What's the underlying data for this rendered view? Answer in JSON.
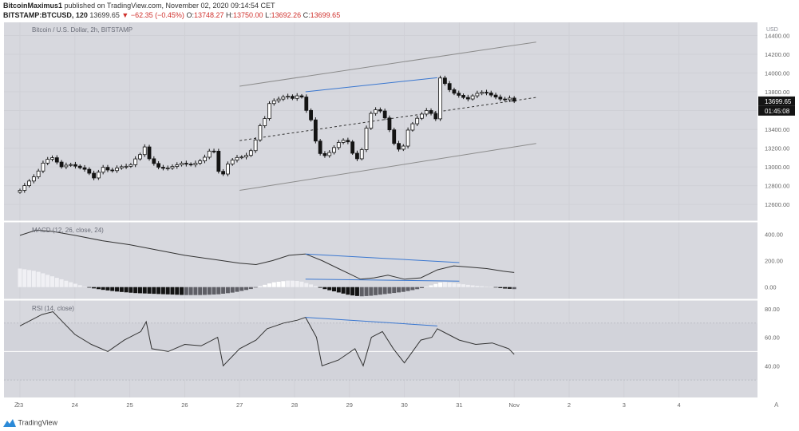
{
  "header": {
    "author": "BitcoinMaximus1",
    "published": "published on TradingView.com, November 02, 2020 09:14:54 CET",
    "symbol": "BITSTAMP:BTCUSD, 120",
    "last": "13699.65",
    "change_arrow": "▼",
    "change": "−62.35 (−0.45%)",
    "o_label": "O:",
    "o_value": "13748.27",
    "h_label": "H:",
    "h_value": "13750.00",
    "l_label": "L:",
    "l_value": "13692.26",
    "c_label": "C:",
    "c_value": "13699.65"
  },
  "main_pane": {
    "legend": "Bitcoin / U.S. Dollar, 2h, BITSTAMP",
    "currency": "USD",
    "price_badge": "13699.65",
    "timer_badge": "01:45:08"
  },
  "macd_pane": {
    "legend": "MACD (12, 26, close, 24)"
  },
  "rsi_pane": {
    "legend": "RSI (14, close)"
  },
  "footer": {
    "brand": "TradingView"
  },
  "colors": {
    "background": "#ffffff",
    "pane": "#d7d8de",
    "candle_up": "#ffffff",
    "candle_down": "#141414",
    "trendline": "#3a77d0",
    "channel": "#8c8c8c",
    "down_text": "#d0312d"
  },
  "chart_data": [
    {
      "type": "candlestick",
      "title": "Bitcoin / U.S. Dollar, 2h, BITSTAMP",
      "ylabel": "USD",
      "ylim": [
        12440,
        14540
      ],
      "x_ticks": [
        "23",
        "24",
        "25",
        "26",
        "27",
        "28",
        "29",
        "30",
        "31",
        "Nov",
        "2",
        "3",
        "4"
      ],
      "y_ticks": [
        12600,
        12800,
        13000,
        13200,
        13400,
        13600,
        13800,
        14000,
        14200,
        14400
      ],
      "last_price": 13699.65,
      "close_path": [
        [
          0,
          12750
        ],
        [
          0.15,
          12840
        ],
        [
          0.3,
          12920
        ],
        [
          0.45,
          13070
        ],
        [
          0.6,
          13100
        ],
        [
          0.75,
          13000
        ],
        [
          0.9,
          13030
        ],
        [
          1.05,
          13000
        ],
        [
          1.2,
          12970
        ],
        [
          1.35,
          12880
        ],
        [
          1.5,
          13000
        ],
        [
          1.65,
          12950
        ],
        [
          1.8,
          13000
        ],
        [
          2.0,
          13010
        ],
        [
          2.15,
          13120
        ],
        [
          2.25,
          13150
        ],
        [
          2.3,
          13300
        ],
        [
          2.35,
          13090
        ],
        [
          2.5,
          13000
        ],
        [
          2.65,
          12980
        ],
        [
          2.8,
          13010
        ],
        [
          2.95,
          13040
        ],
        [
          3.1,
          13020
        ],
        [
          3.25,
          13050
        ],
        [
          3.4,
          13120
        ],
        [
          3.5,
          13220
        ],
        [
          3.55,
          13140
        ],
        [
          3.6,
          13000
        ],
        [
          3.65,
          12860
        ],
        [
          3.8,
          13050
        ],
        [
          3.95,
          13100
        ],
        [
          4.1,
          13110
        ],
        [
          4.25,
          13200
        ],
        [
          4.35,
          13420
        ],
        [
          4.45,
          13500
        ],
        [
          4.55,
          13690
        ],
        [
          4.7,
          13720
        ],
        [
          4.85,
          13760
        ],
        [
          5.0,
          13720
        ],
        [
          5.1,
          13800
        ],
        [
          5.2,
          13620
        ],
        [
          5.3,
          13500
        ],
        [
          5.4,
          13230
        ],
        [
          5.5,
          13100
        ],
        [
          5.65,
          13160
        ],
        [
          5.8,
          13260
        ],
        [
          5.95,
          13300
        ],
        [
          6.05,
          13150
        ],
        [
          6.15,
          13080
        ],
        [
          6.25,
          13220
        ],
        [
          6.35,
          13550
        ],
        [
          6.5,
          13620
        ],
        [
          6.6,
          13580
        ],
        [
          6.7,
          13450
        ],
        [
          6.8,
          13260
        ],
        [
          6.95,
          13150
        ],
        [
          7.05,
          13380
        ],
        [
          7.2,
          13500
        ],
        [
          7.35,
          13580
        ],
        [
          7.45,
          13620
        ],
        [
          7.55,
          13480
        ],
        [
          7.6,
          13560
        ],
        [
          7.65,
          13950
        ],
        [
          7.75,
          13880
        ],
        [
          7.85,
          13800
        ],
        [
          8.0,
          13760
        ],
        [
          8.15,
          13720
        ],
        [
          8.3,
          13780
        ],
        [
          8.45,
          13800
        ],
        [
          8.6,
          13760
        ],
        [
          8.8,
          13710
        ],
        [
          8.95,
          13740
        ],
        [
          9.0,
          13699.65
        ]
      ],
      "annotations": {
        "trendline": [
          [
            5.2,
            13800
          ],
          [
            7.6,
            13950
          ]
        ],
        "channel_upper": [
          [
            4.0,
            13860
          ],
          [
            9.4,
            14330
          ]
        ],
        "channel_mid": [
          [
            4.0,
            13280
          ],
          [
            9.4,
            13740
          ]
        ],
        "channel_lower": [
          [
            4.0,
            12750
          ],
          [
            9.4,
            13250
          ]
        ]
      }
    },
    {
      "type": "line",
      "title": "MACD (12, 26, close, 24)",
      "ylim": [
        -80,
        480
      ],
      "y_ticks": [
        0,
        200,
        400
      ],
      "macd": [
        [
          0,
          390
        ],
        [
          0.3,
          430
        ],
        [
          0.6,
          420
        ],
        [
          1.0,
          390
        ],
        [
          1.5,
          350
        ],
        [
          2.0,
          320
        ],
        [
          2.5,
          280
        ],
        [
          3.0,
          240
        ],
        [
          3.5,
          210
        ],
        [
          4.0,
          180
        ],
        [
          4.3,
          170
        ],
        [
          4.6,
          200
        ],
        [
          4.9,
          240
        ],
        [
          5.2,
          250
        ],
        [
          5.5,
          200
        ],
        [
          5.8,
          140
        ],
        [
          6.0,
          100
        ],
        [
          6.2,
          60
        ],
        [
          6.45,
          70
        ],
        [
          6.7,
          90
        ],
        [
          7.0,
          60
        ],
        [
          7.3,
          70
        ],
        [
          7.6,
          130
        ],
        [
          7.9,
          160
        ],
        [
          8.2,
          150
        ],
        [
          8.5,
          140
        ],
        [
          8.8,
          120
        ],
        [
          9.0,
          110
        ]
      ],
      "histogram": [
        [
          0,
          140
        ],
        [
          0.3,
          120
        ],
        [
          0.6,
          80
        ],
        [
          0.9,
          40
        ],
        [
          1.2,
          0
        ],
        [
          1.5,
          -20
        ],
        [
          1.8,
          -35
        ],
        [
          2.1,
          -45
        ],
        [
          2.4,
          -50
        ],
        [
          2.7,
          -55
        ],
        [
          3.0,
          -60
        ],
        [
          3.3,
          -60
        ],
        [
          3.6,
          -55
        ],
        [
          3.9,
          -40
        ],
        [
          4.2,
          -15
        ],
        [
          4.4,
          10
        ],
        [
          4.6,
          35
        ],
        [
          4.9,
          50
        ],
        [
          5.1,
          45
        ],
        [
          5.3,
          20
        ],
        [
          5.5,
          -10
        ],
        [
          5.8,
          -40
        ],
        [
          6.0,
          -60
        ],
        [
          6.2,
          -70
        ],
        [
          6.4,
          -65
        ],
        [
          6.7,
          -50
        ],
        [
          7.0,
          -35
        ],
        [
          7.3,
          -10
        ],
        [
          7.5,
          15
        ],
        [
          7.7,
          40
        ],
        [
          8.0,
          25
        ],
        [
          8.3,
          10
        ],
        [
          8.6,
          0
        ],
        [
          8.8,
          -10
        ],
        [
          9.0,
          -15
        ]
      ],
      "annotations": {
        "macd_divergence": [
          [
            5.2,
            250
          ],
          [
            8.0,
            185
          ]
        ],
        "histogram_divergence": [
          [
            5.2,
            60
          ],
          [
            8.0,
            45
          ]
        ]
      }
    },
    {
      "type": "line",
      "title": "RSI (14, close)",
      "ylim": [
        25,
        85
      ],
      "y_ticks": [
        40,
        60,
        80
      ],
      "bands": [
        30,
        50,
        70
      ],
      "rsi": [
        [
          0,
          68
        ],
        [
          0.2,
          72
        ],
        [
          0.4,
          76
        ],
        [
          0.6,
          78
        ],
        [
          0.8,
          70
        ],
        [
          1.0,
          62
        ],
        [
          1.3,
          55
        ],
        [
          1.6,
          50
        ],
        [
          1.9,
          58
        ],
        [
          2.2,
          64
        ],
        [
          2.3,
          71
        ],
        [
          2.4,
          52
        ],
        [
          2.7,
          50
        ],
        [
          3.0,
          55
        ],
        [
          3.3,
          54
        ],
        [
          3.6,
          60
        ],
        [
          3.7,
          40
        ],
        [
          4.0,
          52
        ],
        [
          4.3,
          58
        ],
        [
          4.5,
          66
        ],
        [
          4.8,
          70
        ],
        [
          5.05,
          72
        ],
        [
          5.2,
          74
        ],
        [
          5.4,
          60
        ],
        [
          5.5,
          40
        ],
        [
          5.8,
          44
        ],
        [
          6.1,
          52
        ],
        [
          6.25,
          40
        ],
        [
          6.4,
          60
        ],
        [
          6.6,
          64
        ],
        [
          6.8,
          52
        ],
        [
          7.0,
          42
        ],
        [
          7.3,
          58
        ],
        [
          7.5,
          60
        ],
        [
          7.6,
          66
        ],
        [
          7.8,
          62
        ],
        [
          8.0,
          58
        ],
        [
          8.3,
          55
        ],
        [
          8.6,
          56
        ],
        [
          8.9,
          52
        ],
        [
          9.0,
          48
        ]
      ],
      "annotations": {
        "rsi_divergence": [
          [
            5.2,
            74
          ],
          [
            7.6,
            68
          ]
        ]
      }
    }
  ]
}
